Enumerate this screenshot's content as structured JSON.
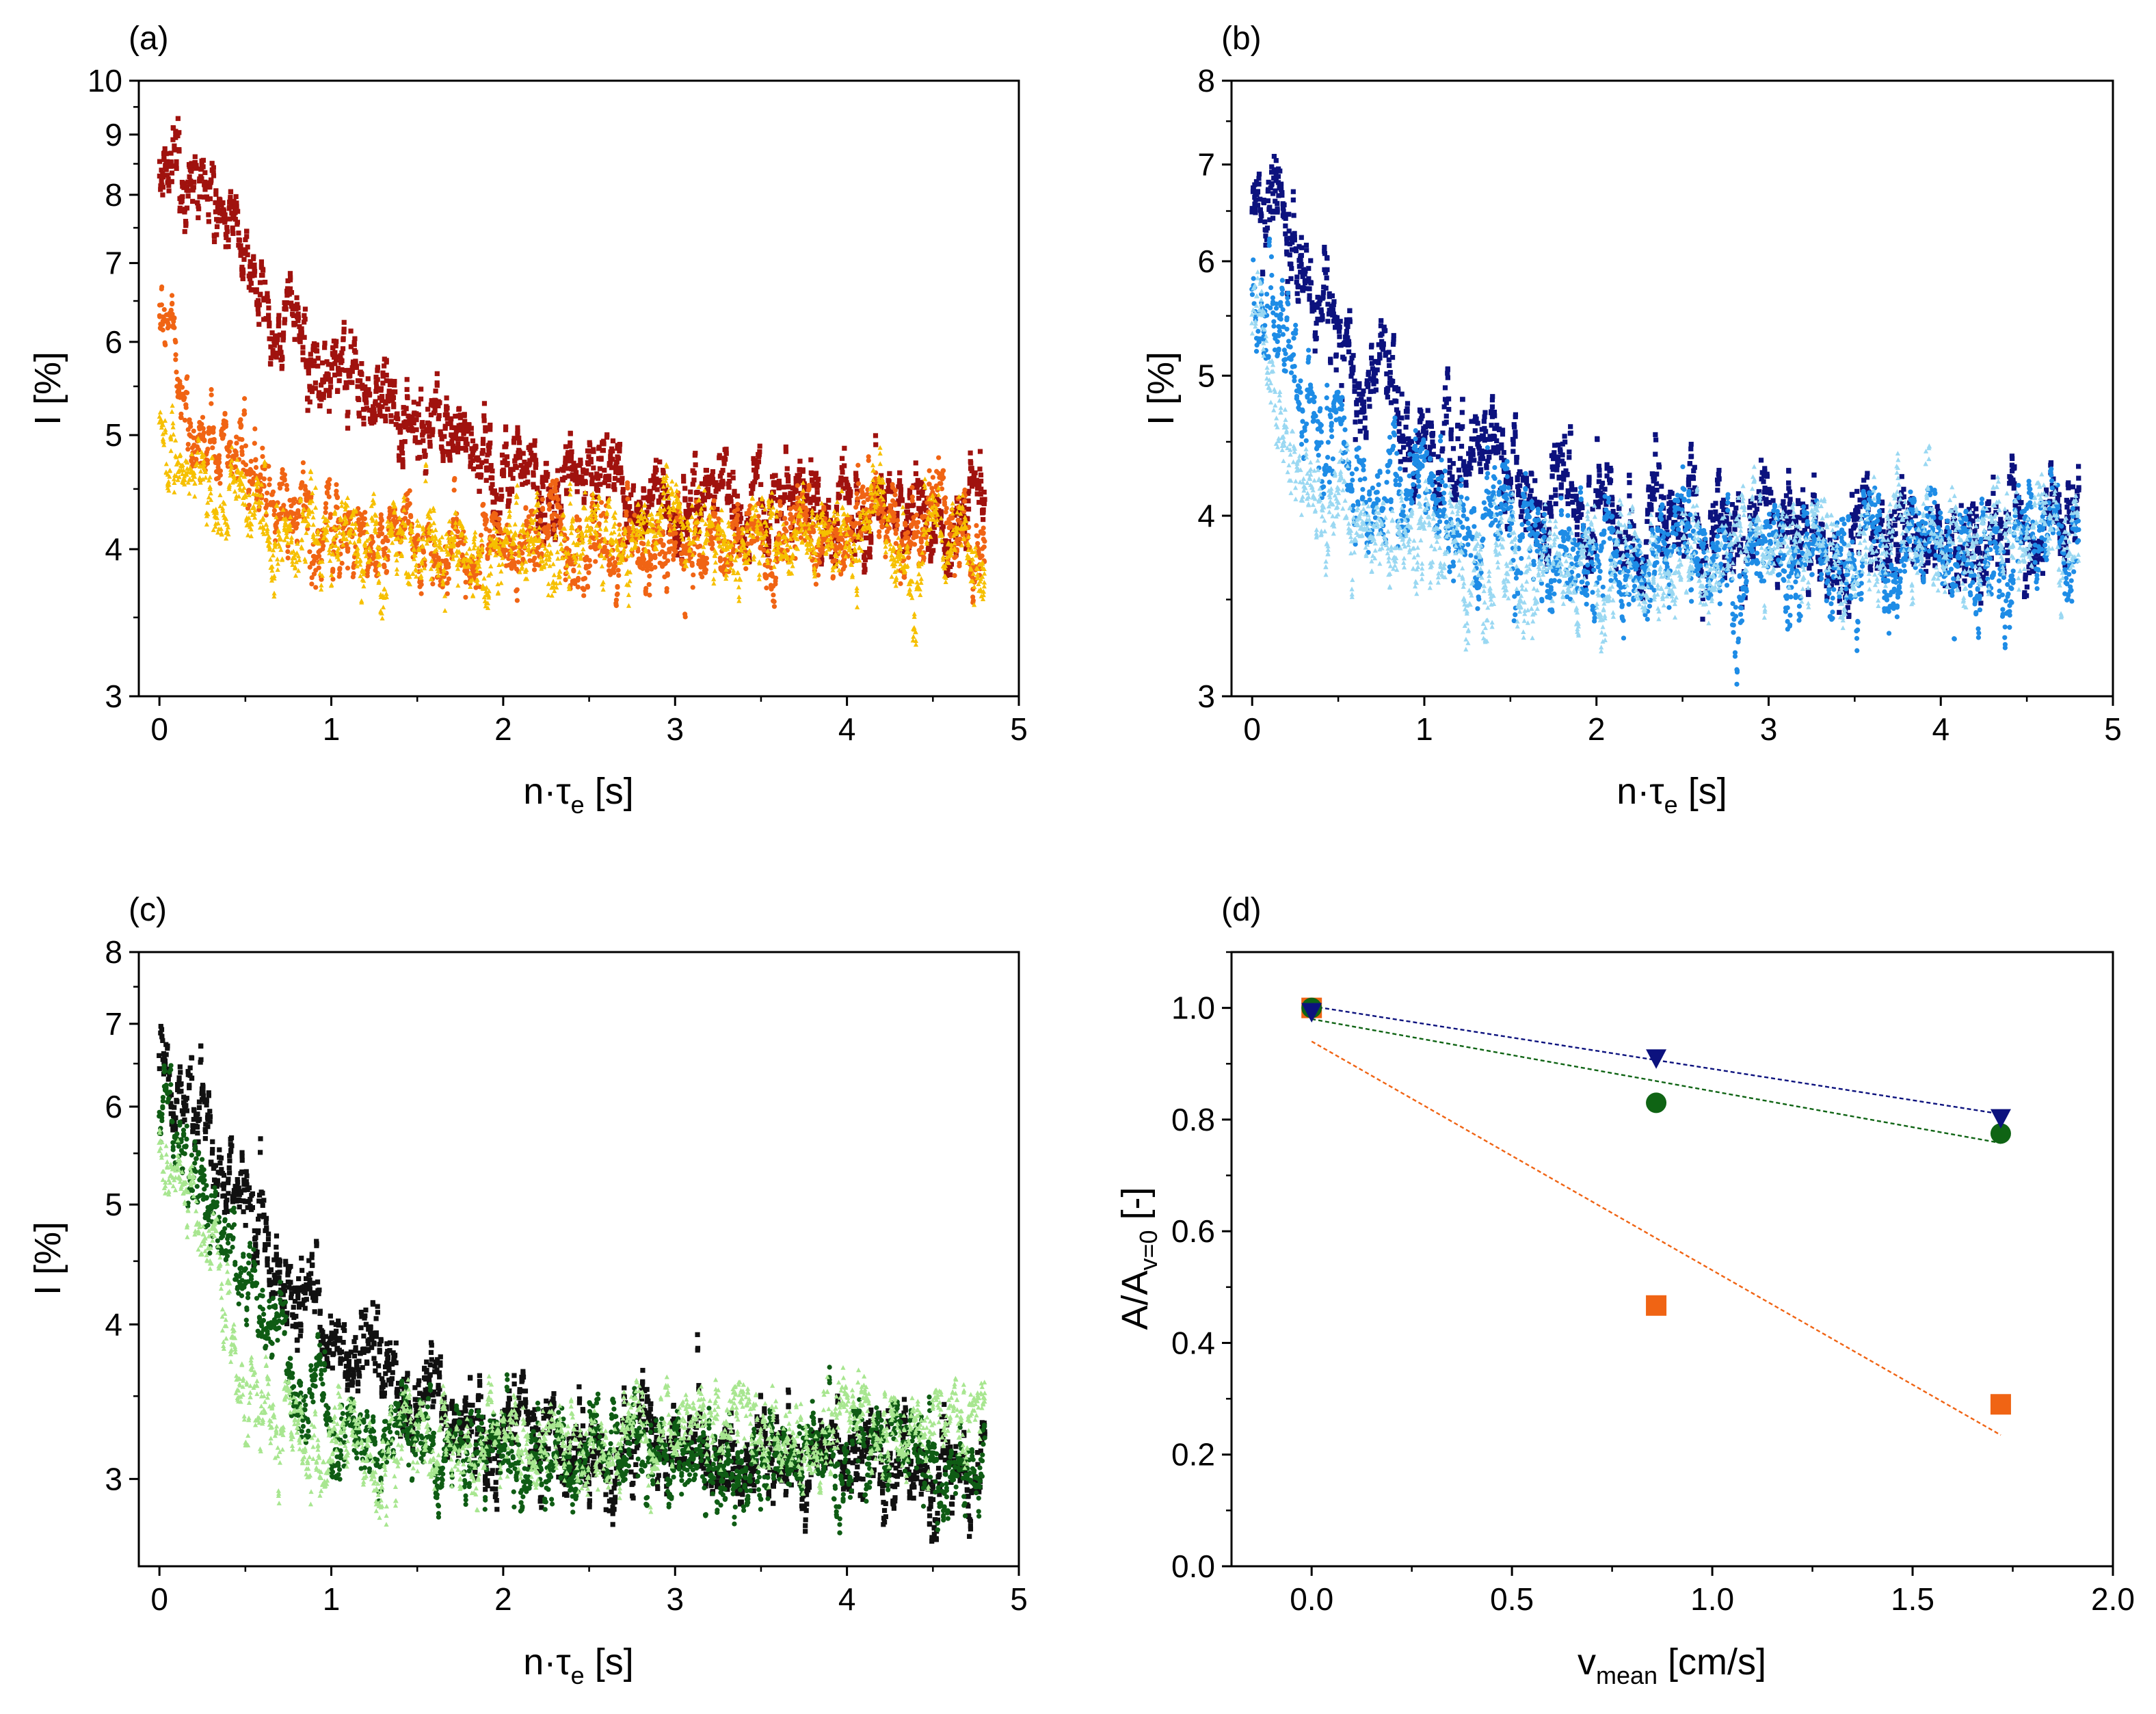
{
  "chart_data": [
    {
      "id": "a",
      "type": "scatter",
      "panel_label": "(a)",
      "xlabel": "n·τ",
      "xlabel_sub": "e",
      "xlabel_unit": "[s]",
      "ylabel": "I [%]",
      "xlim": [
        -0.12,
        5
      ],
      "ylim": [
        3,
        10
      ],
      "yscale": "log",
      "xticks": [
        "0",
        "1",
        "2",
        "3",
        "4",
        "5"
      ],
      "yticks": [
        "3",
        "4",
        "5",
        "6",
        "7",
        "8",
        "9",
        "10"
      ],
      "series": [
        {
          "name": "dark red",
          "color": "#a0120e",
          "marker": "square",
          "seed": 11,
          "decay": [
            [
              0,
              8.8
            ],
            [
              0.1,
              8.7
            ],
            [
              0.25,
              8.0
            ],
            [
              0.5,
              7.0
            ],
            [
              0.75,
              6.1
            ],
            [
              1.0,
              5.7
            ],
            [
              1.3,
              5.3
            ],
            [
              1.6,
              5.0
            ],
            [
              2.0,
              4.65
            ],
            [
              2.5,
              4.45
            ],
            [
              3.0,
              4.35
            ],
            [
              3.5,
              4.3
            ],
            [
              4.0,
              4.35
            ],
            [
              4.8,
              4.4
            ]
          ]
        },
        {
          "name": "orange",
          "color": "#f06414",
          "marker": "circle",
          "seed": 23,
          "decay": [
            [
              0,
              6.6
            ],
            [
              0.05,
              6.0
            ],
            [
              0.15,
              5.4
            ],
            [
              0.3,
              5.0
            ],
            [
              0.5,
              4.6
            ],
            [
              0.8,
              4.3
            ],
            [
              1.2,
              4.1
            ],
            [
              1.6,
              4.0
            ],
            [
              2.0,
              3.95
            ],
            [
              2.5,
              4.0
            ],
            [
              3.0,
              4.1
            ],
            [
              4.0,
              4.15
            ],
            [
              4.8,
              4.2
            ]
          ]
        },
        {
          "name": "yellow",
          "color": "#f6c000",
          "marker": "triangle",
          "seed": 37,
          "decay": [
            [
              0,
              5.3
            ],
            [
              0.1,
              4.8
            ],
            [
              0.3,
              4.3
            ],
            [
              0.6,
              4.1
            ],
            [
              1.0,
              4.05
            ],
            [
              2.0,
              4.05
            ],
            [
              3.0,
              4.1
            ],
            [
              4.0,
              4.1
            ],
            [
              4.8,
              4.05
            ]
          ]
        }
      ]
    },
    {
      "id": "b",
      "type": "scatter",
      "panel_label": "(b)",
      "xlabel": "n·τ",
      "xlabel_sub": "e",
      "xlabel_unit": "[s]",
      "ylabel": "I [%]",
      "xlim": [
        -0.12,
        5
      ],
      "ylim": [
        3,
        8
      ],
      "yscale": "log",
      "xticks": [
        "0",
        "1",
        "2",
        "3",
        "4",
        "5"
      ],
      "yticks": [
        "3",
        "4",
        "5",
        "6",
        "7",
        "8"
      ],
      "series": [
        {
          "name": "navy",
          "color": "#0c127e",
          "marker": "square",
          "seed": 51,
          "decay": [
            [
              0,
              6.5
            ],
            [
              0.2,
              6.1
            ],
            [
              0.4,
              5.5
            ],
            [
              0.6,
              5.0
            ],
            [
              0.8,
              4.75
            ],
            [
              1.0,
              4.55
            ],
            [
              1.3,
              4.4
            ],
            [
              1.6,
              4.2
            ],
            [
              2.0,
              4.05
            ],
            [
              2.5,
              3.95
            ],
            [
              3.0,
              3.9
            ],
            [
              4.0,
              3.9
            ],
            [
              4.8,
              3.9
            ]
          ]
        },
        {
          "name": "blue",
          "color": "#1e8ce6",
          "marker": "circle",
          "seed": 67,
          "decay": [
            [
              0,
              6.0
            ],
            [
              0.2,
              5.2
            ],
            [
              0.4,
              4.8
            ],
            [
              0.7,
              4.4
            ],
            [
              1.0,
              4.1
            ],
            [
              1.5,
              3.85
            ],
            [
              2.0,
              3.75
            ],
            [
              3.0,
              3.75
            ],
            [
              4.0,
              3.8
            ],
            [
              4.8,
              3.8
            ]
          ]
        },
        {
          "name": "light blue",
          "color": "#9ad8f2",
          "marker": "triangle",
          "seed": 79,
          "decay": [
            [
              0,
              5.6
            ],
            [
              0.1,
              5.0
            ],
            [
              0.3,
              4.2
            ],
            [
              0.5,
              3.9
            ],
            [
              0.8,
              3.75
            ],
            [
              1.5,
              3.7
            ],
            [
              2.5,
              3.72
            ],
            [
              3.5,
              3.78
            ],
            [
              4.8,
              3.8
            ]
          ]
        }
      ]
    },
    {
      "id": "c",
      "type": "scatter",
      "panel_label": "(c)",
      "xlabel": "n·τ",
      "xlabel_sub": "e",
      "xlabel_unit": "[s]",
      "ylabel": "I [%]",
      "xlim": [
        -0.12,
        5
      ],
      "ylim": [
        2.55,
        8
      ],
      "yscale": "log",
      "xticks": [
        "0",
        "1",
        "2",
        "3",
        "4",
        "5"
      ],
      "yticks": [
        "3",
        "4",
        "5",
        "6",
        "7",
        "8"
      ],
      "series": [
        {
          "name": "black",
          "color": "#111111",
          "marker": "square",
          "seed": 91,
          "decay": [
            [
              0,
              6.7
            ],
            [
              0.1,
              6.2
            ],
            [
              0.3,
              5.6
            ],
            [
              0.5,
              5.0
            ],
            [
              0.7,
              4.4
            ],
            [
              1.0,
              3.9
            ],
            [
              1.3,
              3.6
            ],
            [
              1.6,
              3.4
            ],
            [
              2.0,
              3.25
            ],
            [
              2.5,
              3.15
            ],
            [
              3.0,
              3.1
            ],
            [
              4.0,
              3.05
            ],
            [
              4.8,
              3.05
            ]
          ]
        },
        {
          "name": "dark green",
          "color": "#0f5c14",
          "marker": "circle",
          "seed": 103,
          "decay": [
            [
              0,
              5.9
            ],
            [
              0.2,
              5.4
            ],
            [
              0.4,
              4.7
            ],
            [
              0.6,
              4.0
            ],
            [
              0.8,
              3.6
            ],
            [
              1.0,
              3.4
            ],
            [
              1.5,
              3.2
            ],
            [
              2.0,
              3.1
            ],
            [
              3.0,
              3.1
            ],
            [
              4.0,
              3.1
            ],
            [
              4.8,
              3.1
            ]
          ]
        },
        {
          "name": "light green",
          "color": "#a8e690",
          "marker": "triangle",
          "seed": 117,
          "decay": [
            [
              0,
              5.6
            ],
            [
              0.2,
              5.0
            ],
            [
              0.4,
              4.1
            ],
            [
              0.55,
              3.5
            ],
            [
              0.7,
              3.25
            ],
            [
              1.0,
              3.2
            ],
            [
              2.0,
              3.2
            ],
            [
              3.0,
              3.25
            ],
            [
              4.0,
              3.3
            ],
            [
              4.8,
              3.3
            ]
          ]
        }
      ]
    },
    {
      "id": "d",
      "type": "scatter",
      "panel_label": "(d)",
      "xlabel": "v",
      "xlabel_sub": "mean",
      "xlabel_unit": "[cm/s]",
      "ylabel": "A/A",
      "ylabel_sub": "v=0",
      "ylabel_unit": "[-]",
      "xlim": [
        -0.2,
        2.0
      ],
      "ylim": [
        0.0,
        1.1
      ],
      "xticks": [
        "0.0",
        "0.5",
        "1.0",
        "1.5",
        "2.0"
      ],
      "yticks": [
        "0.0",
        "0.2",
        "0.4",
        "0.6",
        "0.8",
        "1.0"
      ],
      "series": [
        {
          "name": "orange squares",
          "color": "#f06414",
          "marker": "square",
          "x": [
            0.0,
            0.86,
            1.72
          ],
          "y": [
            1.0,
            0.467,
            0.29
          ],
          "fit": {
            "x": [
              0.0,
              1.72
            ],
            "y": [
              0.94,
              0.235
            ]
          }
        },
        {
          "name": "green circles",
          "color": "#0f6414",
          "marker": "circle",
          "x": [
            0.0,
            0.86,
            1.72
          ],
          "y": [
            1.0,
            0.83,
            0.775
          ],
          "fit": {
            "x": [
              0.0,
              1.72
            ],
            "y": [
              0.98,
              0.758
            ]
          }
        },
        {
          "name": "navy triangles",
          "color": "#0c127e",
          "marker": "triangle-down",
          "x": [
            0.0,
            0.86,
            1.72
          ],
          "y": [
            0.995,
            0.912,
            0.805
          ],
          "fit": {
            "x": [
              0.0,
              1.72
            ],
            "y": [
              1.003,
              0.81
            ]
          }
        }
      ]
    }
  ]
}
